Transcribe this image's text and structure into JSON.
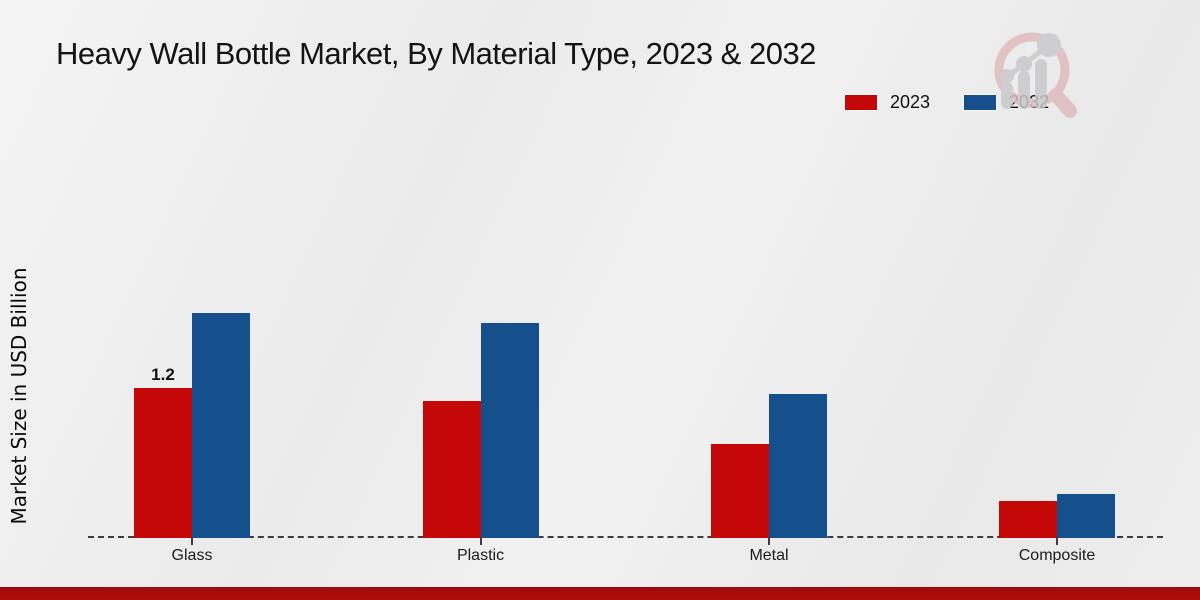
{
  "title": "Heavy Wall Bottle Market, By Material Type, 2023 & 2032",
  "y_axis_label": "Market Size in USD Billion",
  "legend": {
    "position": "top-right",
    "items": [
      {
        "label": "2023",
        "color": "#c40808"
      },
      {
        "label": "2032",
        "color": "#15508c"
      }
    ]
  },
  "colors": {
    "series_2023": "#c40808",
    "series_2032": "#15508c",
    "footer_bar": "#b00d0d",
    "baseline": "#3d3d3d",
    "background": "#ededee"
  },
  "watermark": {
    "name": "market-research-magnifier-logo"
  },
  "chart_data": {
    "type": "bar",
    "categories": [
      "Glass",
      "Plastic",
      "Metal",
      "Composite"
    ],
    "series": [
      {
        "name": "2023",
        "color": "#c40808",
        "values": [
          1.2,
          1.1,
          0.75,
          0.3
        ]
      },
      {
        "name": "2032",
        "color": "#15508c",
        "values": [
          1.8,
          1.72,
          1.15,
          0.35
        ]
      }
    ],
    "data_labels": [
      {
        "series": "2023",
        "category": "Glass",
        "text": "1.2"
      }
    ],
    "title": "Heavy Wall Bottle Market, By Material Type, 2023 & 2032",
    "xlabel": "",
    "ylabel": "Market Size in USD Billion",
    "ylim": [
      0,
      2.0
    ],
    "grid": false,
    "y_axis_ticks_visible": false,
    "baseline_style": "dashed",
    "legend_position": "top-right"
  }
}
